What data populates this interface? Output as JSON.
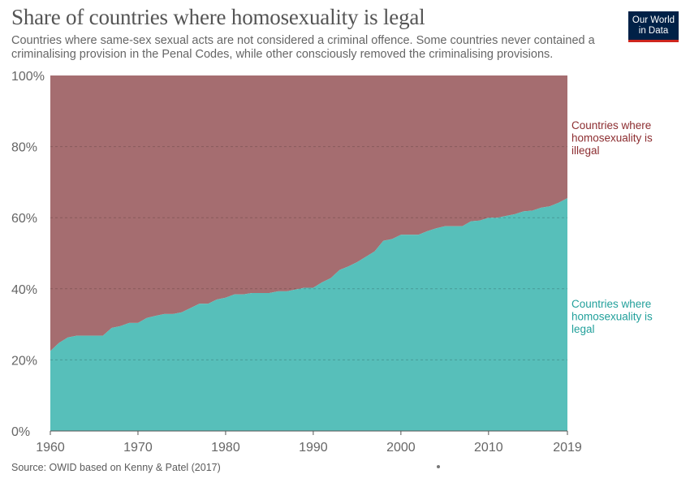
{
  "header": {
    "title": "Share of countries where homosexuality is legal",
    "subtitle": "Countries where same-sex sexual acts are not considered a criminal offence. Some countries never contained a criminalising provision in the Penal Codes, while other consciously removed the criminalising provisions.",
    "logo_line1": "Our World",
    "logo_line2": "in Data"
  },
  "footer": {
    "source": "Source: OWID based on Kenny & Patel (2017)"
  },
  "colors": {
    "legal": "#57bfba",
    "illegal": "#a56d70",
    "illegal_label": "#8c2d30",
    "legal_label": "#22a09b",
    "logo_bg": "#002147",
    "logo_accent": "#ce261e"
  },
  "chart_data": {
    "type": "area",
    "stacked": true,
    "percent": true,
    "x": [
      1960,
      1961,
      1962,
      1963,
      1964,
      1965,
      1966,
      1967,
      1968,
      1969,
      1970,
      1971,
      1972,
      1973,
      1974,
      1975,
      1976,
      1977,
      1978,
      1979,
      1980,
      1981,
      1982,
      1983,
      1984,
      1985,
      1986,
      1987,
      1988,
      1989,
      1990,
      1991,
      1992,
      1993,
      1994,
      1995,
      1996,
      1997,
      1998,
      1999,
      2000,
      2001,
      2002,
      2003,
      2004,
      2005,
      2006,
      2007,
      2008,
      2009,
      2010,
      2011,
      2012,
      2013,
      2014,
      2015,
      2016,
      2017,
      2018,
      2019
    ],
    "series": [
      {
        "name": "Countries where homosexuality is legal",
        "values": [
          22.5,
          24.8,
          26.3,
          26.8,
          26.8,
          26.8,
          26.8,
          29.0,
          29.5,
          30.4,
          30.4,
          31.8,
          32.4,
          32.9,
          32.9,
          33.4,
          34.6,
          35.8,
          35.8,
          37.0,
          37.5,
          38.4,
          38.4,
          38.8,
          38.8,
          38.8,
          39.3,
          39.3,
          39.8,
          40.3,
          40.3,
          41.8,
          43.0,
          45.3,
          46.3,
          47.5,
          49.0,
          50.5,
          53.5,
          54.0,
          55.2,
          55.2,
          55.2,
          56.2,
          57.0,
          57.6,
          57.6,
          57.6,
          59.0,
          59.2,
          60.0,
          60.0,
          60.5,
          61.0,
          61.8,
          62.0,
          62.8,
          63.2,
          64.2,
          65.5
        ]
      },
      {
        "name": "Countries where homosexuality is illegal"
      }
    ],
    "ylim": [
      0,
      100
    ],
    "y_ticks": [
      "0%",
      "20%",
      "40%",
      "60%",
      "80%",
      "100%"
    ],
    "x_ticks": [
      "1960",
      "1970",
      "1980",
      "1990",
      "2000",
      "2010",
      "2019"
    ],
    "legend_placement": "right",
    "grid": true
  }
}
